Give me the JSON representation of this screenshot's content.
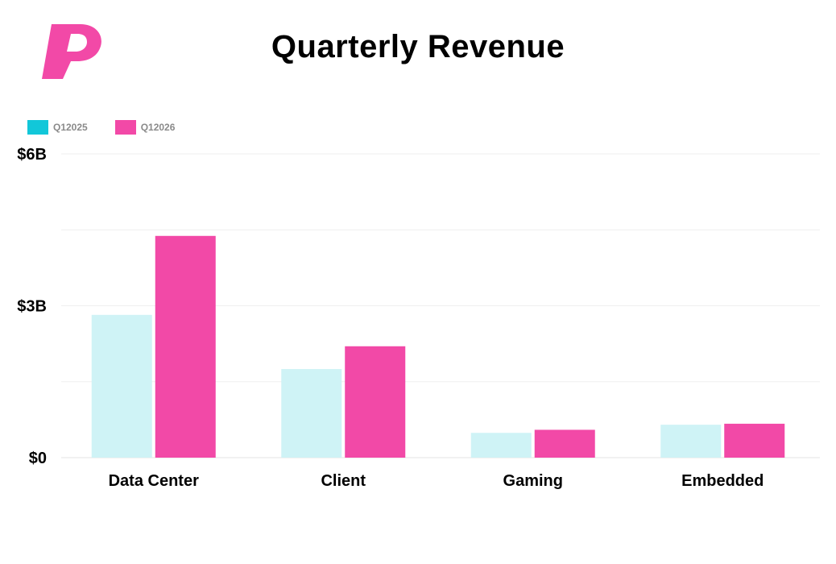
{
  "colors": {
    "accent": "#f249a7",
    "series_q12025": "#cff3f6",
    "series_q12026": "#f249a7",
    "legend_q12025": "#12c7d9",
    "legend_q12026": "#f249a7"
  },
  "legend": {
    "items": [
      {
        "label": "Q12025",
        "color": "#12c7d9"
      },
      {
        "label": "Q12026",
        "color": "#f249a7"
      }
    ]
  },
  "chart_data": {
    "type": "bar",
    "title": "Quarterly Revenue",
    "categories": [
      "Data Center",
      "Client",
      "Gaming",
      "Embedded"
    ],
    "series": [
      {
        "name": "Q12025",
        "color": "#cff3f6",
        "values": [
          2.82,
          1.75,
          0.49,
          0.65
        ]
      },
      {
        "name": "Q12026",
        "color": "#f249a7",
        "values": [
          4.38,
          2.2,
          0.55,
          0.67
        ]
      }
    ],
    "ylim": [
      0,
      6
    ],
    "yticks": [
      {
        "value": 0,
        "label": "$0"
      },
      {
        "value": 3,
        "label": "$3B"
      },
      {
        "value": 6,
        "label": "$6B"
      }
    ],
    "gridlines": [
      0,
      1.5,
      3,
      4.5,
      6
    ],
    "grid": true,
    "legend_position": "top-left"
  }
}
